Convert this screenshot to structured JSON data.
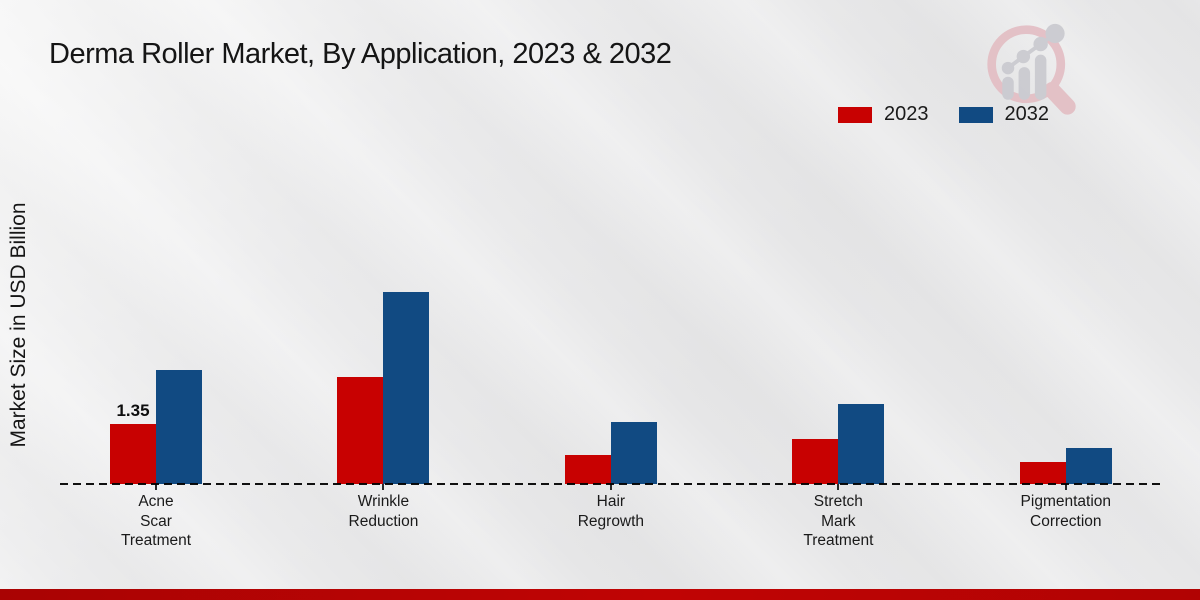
{
  "page": {
    "title": "Derma Roller Market, By Application, 2023 & 2032"
  },
  "y_axis_label": "Market Size in USD Billion",
  "legend": {
    "items": [
      {
        "label": "2023",
        "color": "#c80101"
      },
      {
        "label": "2032",
        "color": "#114a82"
      }
    ]
  },
  "branding": {
    "logo_name": "magnifier-growth-chart-watermark",
    "logo_ring_color": "#e3bdc3",
    "logo_bar_color": "#c9c9cf"
  },
  "footer": {
    "strip_color": "#b30404"
  },
  "chart_data": {
    "type": "bar",
    "title": "Derma Roller Market, By Application, 2023 & 2032",
    "xlabel": "",
    "ylabel": "Market Size in USD Billion",
    "categories": [
      "Acne\nScar\nTreatment",
      "Wrinkle\nReduction",
      "Hair\nRegrowth",
      "Stretch\nMark\nTreatment",
      "Pigmentation\nCorrection"
    ],
    "series": [
      {
        "name": "2023",
        "color": "#c80101",
        "values": [
          1.35,
          2.4,
          0.65,
          1.0,
          0.5
        ]
      },
      {
        "name": "2032",
        "color": "#114a82",
        "values": [
          2.55,
          4.3,
          1.4,
          1.8,
          0.8
        ]
      }
    ],
    "value_labels": [
      {
        "series_index": 0,
        "category_index": 0,
        "text": "1.35"
      }
    ],
    "ylim": [
      0,
      4.6
    ],
    "gridlines": false,
    "baseline_style": "dashed",
    "legend_position": "top-right",
    "y_axis_ticks_visible": false
  }
}
